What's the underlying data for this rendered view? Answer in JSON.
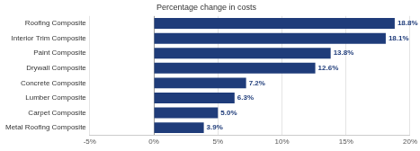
{
  "chart_data": {
    "type": "bar",
    "title": "Percentage change in costs",
    "orientation": "horizontal",
    "categories": [
      "Roofing Composite",
      "Interior Trim Composite",
      "Paint Composite",
      "Drywall Composite",
      "Concrete Composite",
      "Lumber Composite",
      "Carpet Composite",
      "Metal Roofing Composite"
    ],
    "values": [
      18.8,
      18.1,
      13.8,
      12.6,
      7.2,
      6.3,
      5.0,
      3.9
    ],
    "value_labels": [
      "18.8%",
      "18.1%",
      "13.8%",
      "12.6%",
      "7.2%",
      "6.3%",
      "5.0%",
      "3.9%"
    ],
    "color": "#1f3c7a",
    "xlim": [
      -5,
      20
    ],
    "xticks": [
      {
        "value": -5,
        "label": "-5%"
      },
      {
        "value": 0,
        "label": "0%"
      },
      {
        "value": 5,
        "label": "5%"
      },
      {
        "value": 10,
        "label": "10%"
      },
      {
        "value": 15,
        "label": "15%"
      },
      {
        "value": 20,
        "label": "20%"
      }
    ],
    "grid": true,
    "data_labels": true
  }
}
